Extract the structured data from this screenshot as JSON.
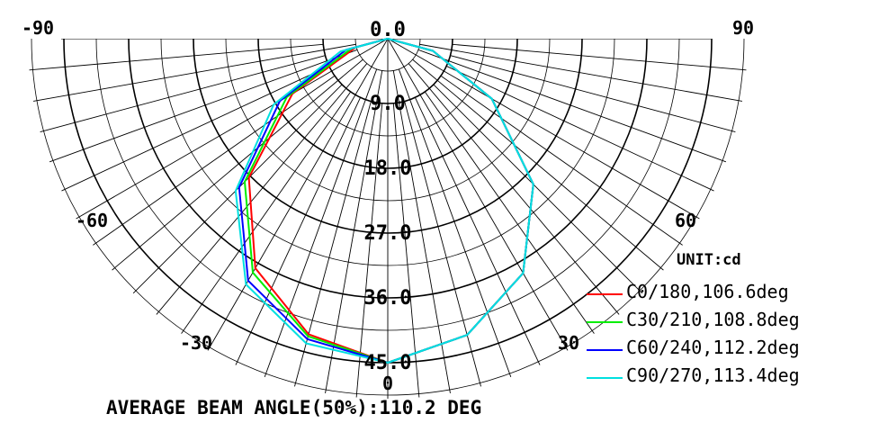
{
  "chart_data": {
    "type": "polar",
    "unit_label": "UNIT:cd",
    "footer": "AVERAGE BEAM ANGLE(50%):110.2 DEG",
    "radial_labels": [
      "0.0",
      "9.0",
      "18.0",
      "27.0",
      "36.0",
      "45.0"
    ],
    "radial_max": 45,
    "angle_labels": [
      {
        "angle": -90,
        "text": "-90"
      },
      {
        "angle": -60,
        "text": "-60"
      },
      {
        "angle": -30,
        "text": "-30"
      },
      {
        "angle": 0,
        "text": "0"
      },
      {
        "angle": 30,
        "text": "30"
      },
      {
        "angle": 60,
        "text": "60"
      },
      {
        "angle": 90,
        "text": "90"
      }
    ],
    "series": [
      {
        "name": "C0/180,106.6deg",
        "color": "#ff0000",
        "points": [
          [
            -90,
            0
          ],
          [
            -75,
            4.6
          ],
          [
            -60,
            15.3
          ],
          [
            -45,
            27.3
          ],
          [
            -30,
            36.8
          ],
          [
            -15,
            42.5
          ],
          [
            0,
            45
          ],
          [
            15,
            42.6
          ],
          [
            30,
            37.6
          ],
          [
            45,
            28.6
          ],
          [
            60,
            16.7
          ],
          [
            75,
            6.5
          ],
          [
            90,
            0
          ]
        ]
      },
      {
        "name": "C30/210,108.8deg",
        "color": "#00ee00",
        "points": [
          [
            -90,
            0
          ],
          [
            -75,
            5.2
          ],
          [
            -60,
            16.2
          ],
          [
            -45,
            28.1
          ],
          [
            -30,
            37.5
          ],
          [
            -15,
            42.8
          ],
          [
            0,
            45
          ],
          [
            15,
            42.6
          ],
          [
            30,
            37.6
          ],
          [
            45,
            28.6
          ],
          [
            60,
            16.7
          ],
          [
            75,
            6.5
          ],
          [
            90,
            0
          ]
        ]
      },
      {
        "name": "C60/240,112.2deg",
        "color": "#0000ff",
        "points": [
          [
            -90,
            0
          ],
          [
            -75,
            6.0
          ],
          [
            -60,
            17.3
          ],
          [
            -45,
            29.2
          ],
          [
            -30,
            38.8
          ],
          [
            -15,
            43.2
          ],
          [
            0,
            45
          ],
          [
            15,
            42.6
          ],
          [
            30,
            37.6
          ],
          [
            45,
            28.6
          ],
          [
            60,
            16.7
          ],
          [
            75,
            6.5
          ],
          [
            90,
            0
          ]
        ]
      },
      {
        "name": "C90/270,113.4deg",
        "color": "#00e0e0",
        "points": [
          [
            -90,
            0
          ],
          [
            -75,
            6.8
          ],
          [
            -60,
            18.3
          ],
          [
            -45,
            29.9
          ],
          [
            -30,
            39.4
          ],
          [
            -15,
            43.8
          ],
          [
            0,
            45
          ],
          [
            15,
            42.6
          ],
          [
            30,
            37.6
          ],
          [
            45,
            28.6
          ],
          [
            60,
            16.7
          ],
          [
            75,
            6.5
          ],
          [
            90,
            0
          ]
        ]
      }
    ]
  }
}
